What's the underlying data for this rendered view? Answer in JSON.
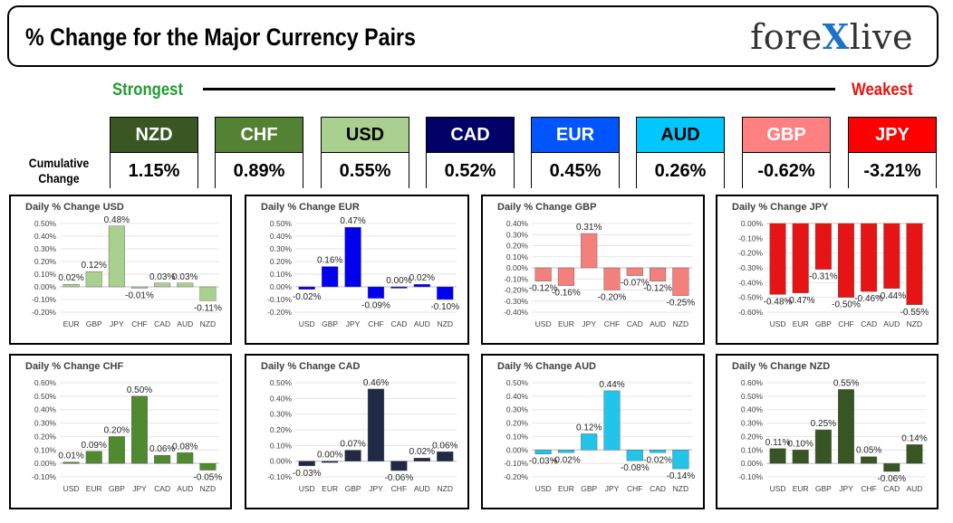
{
  "header": {
    "title": "% Change for the Major Currency Pairs",
    "logo_left": "fore",
    "logo_x": "X",
    "logo_right": "live"
  },
  "strength": {
    "strongest": "Strongest",
    "weakest": "Weakest",
    "cumulative_label_1": "Cumulative",
    "cumulative_label_2": "Change"
  },
  "currencies": [
    {
      "code": "NZD",
      "change": "1.15%",
      "bg": "#385723",
      "fg": "#ffffff"
    },
    {
      "code": "CHF",
      "change": "0.89%",
      "bg": "#548235",
      "fg": "#ffffff"
    },
    {
      "code": "USD",
      "change": "0.55%",
      "bg": "#a9d08e",
      "fg": "#000000"
    },
    {
      "code": "CAD",
      "change": "0.52%",
      "bg": "#000066",
      "fg": "#ffffff"
    },
    {
      "code": "EUR",
      "change": "0.45%",
      "bg": "#0055ff",
      "fg": "#ffffff"
    },
    {
      "code": "AUD",
      "change": "0.26%",
      "bg": "#00c8ff",
      "fg": "#000000"
    },
    {
      "code": "GBP",
      "change": "-0.62%",
      "bg": "#ff8080",
      "fg": "#ffffff"
    },
    {
      "code": "JPY",
      "change": "-3.21%",
      "bg": "#ff0000",
      "fg": "#ffffff"
    }
  ],
  "chart_data": [
    {
      "type": "bar",
      "title": "Daily % Change USD",
      "categories": [
        "EUR",
        "GBP",
        "JPY",
        "CHF",
        "CAD",
        "AUD",
        "NZD"
      ],
      "values": [
        0.02,
        0.12,
        0.48,
        -0.01,
        0.03,
        0.03,
        -0.11
      ],
      "value_labels": [
        "0.02%",
        "0.12%",
        "0.48%",
        "-0.01%",
        "0.03%",
        "0.03%",
        "-0.11%"
      ],
      "yticks": [
        "0.50%",
        "0.40%",
        "0.30%",
        "0.20%",
        "0.10%",
        "0.00%",
        "-0.10%",
        "-0.20%"
      ],
      "ylim": [
        -0.2,
        0.5
      ],
      "color": "#a9d08e"
    },
    {
      "type": "bar",
      "title": "Daily % Change EUR",
      "categories": [
        "USD",
        "GBP",
        "JPY",
        "CHF",
        "CAD",
        "AUD",
        "NZD"
      ],
      "values": [
        -0.02,
        0.16,
        0.47,
        -0.09,
        0.0,
        0.02,
        -0.1
      ],
      "value_labels": [
        "-0.02%",
        "0.16%",
        "0.47%",
        "-0.09%",
        "0.00%",
        "0.02%",
        "-0.10%"
      ],
      "yticks": [
        "0.50%",
        "0.40%",
        "0.30%",
        "0.20%",
        "0.10%",
        "0.00%",
        "-0.10%",
        "-0.20%"
      ],
      "ylim": [
        -0.2,
        0.5
      ],
      "color": "#0000ee"
    },
    {
      "type": "bar",
      "title": "Daily % Change GBP",
      "categories": [
        "USD",
        "EUR",
        "JPY",
        "CHF",
        "CAD",
        "AUD",
        "NZD"
      ],
      "values": [
        -0.12,
        -0.16,
        0.31,
        -0.2,
        -0.07,
        -0.12,
        -0.25
      ],
      "value_labels": [
        "-0.12%",
        "-0.16%",
        "0.31%",
        "-0.20%",
        "-0.07%",
        "-0.12%",
        "-0.25%"
      ],
      "yticks": [
        "0.40%",
        "0.30%",
        "0.20%",
        "0.10%",
        "0.00%",
        "-0.10%",
        "-0.20%",
        "-0.30%",
        "-0.40%"
      ],
      "ylim": [
        -0.4,
        0.4
      ],
      "color": "#f4807c"
    },
    {
      "type": "bar",
      "title": "Daily % Change JPY",
      "categories": [
        "USD",
        "EUR",
        "GBP",
        "CHF",
        "CAD",
        "AUD",
        "NZD"
      ],
      "values": [
        -0.48,
        -0.47,
        -0.31,
        -0.5,
        -0.46,
        -0.44,
        -0.55
      ],
      "value_labels": [
        "-0.48%",
        "-0.47%",
        "-0.31%",
        "-0.50%",
        "-0.46%",
        "-0.44%",
        "-0.55%"
      ],
      "yticks": [
        "0.00%",
        "-0.10%",
        "-0.20%",
        "-0.30%",
        "-0.40%",
        "-0.50%",
        "-0.60%"
      ],
      "ylim": [
        -0.6,
        0.0
      ],
      "color": "#e61414"
    },
    {
      "type": "bar",
      "title": "Daily % Change CHF",
      "categories": [
        "USD",
        "EUR",
        "GBP",
        "JPY",
        "CAD",
        "AUD",
        "NZD"
      ],
      "values": [
        0.01,
        0.09,
        0.2,
        0.5,
        0.06,
        0.08,
        -0.05
      ],
      "value_labels": [
        "0.01%",
        "0.09%",
        "0.20%",
        "0.50%",
        "0.06%",
        "0.08%",
        "-0.05%"
      ],
      "yticks": [
        "0.60%",
        "0.50%",
        "0.40%",
        "0.30%",
        "0.20%",
        "0.10%",
        "0.00%",
        "-0.10%"
      ],
      "ylim": [
        -0.1,
        0.6
      ],
      "color": "#4f8a2e"
    },
    {
      "type": "bar",
      "title": "Daily % Change CAD",
      "categories": [
        "USD",
        "EUR",
        "GBP",
        "JPY",
        "CHF",
        "AUD",
        "NZD"
      ],
      "values": [
        -0.03,
        0.0,
        0.07,
        0.46,
        -0.06,
        0.02,
        0.06
      ],
      "value_labels": [
        "-0.03%",
        "0.00%",
        "0.07%",
        "0.46%",
        "-0.06%",
        "0.02%",
        "0.06%"
      ],
      "yticks": [
        "0.50%",
        "0.40%",
        "0.30%",
        "0.20%",
        "0.10%",
        "0.00%",
        "-0.10%"
      ],
      "ylim": [
        -0.1,
        0.5
      ],
      "color": "#1f2a44"
    },
    {
      "type": "bar",
      "title": "Daily % Change AUD",
      "categories": [
        "USD",
        "EUR",
        "GBP",
        "JPY",
        "CHF",
        "CAD",
        "NZD"
      ],
      "values": [
        -0.03,
        -0.02,
        0.12,
        0.44,
        -0.08,
        -0.02,
        -0.14
      ],
      "value_labels": [
        "-0.03%",
        "-0.02%",
        "0.12%",
        "0.44%",
        "-0.08%",
        "-0.02%",
        "-0.14%"
      ],
      "yticks": [
        "0.50%",
        "0.40%",
        "0.30%",
        "0.20%",
        "0.10%",
        "0.00%",
        "-0.10%",
        "-0.20%"
      ],
      "ylim": [
        -0.2,
        0.5
      ],
      "color": "#22c4ea"
    },
    {
      "type": "bar",
      "title": "Daily % Change NZD",
      "categories": [
        "USD",
        "EUR",
        "GBP",
        "JPY",
        "CHF",
        "CAD",
        "AUD"
      ],
      "values": [
        0.11,
        0.1,
        0.25,
        0.55,
        0.05,
        -0.06,
        0.14
      ],
      "value_labels": [
        "0.11%",
        "0.10%",
        "0.25%",
        "0.55%",
        "0.05%",
        "-0.06%",
        "0.14%"
      ],
      "yticks": [
        "0.60%",
        "0.50%",
        "0.40%",
        "0.30%",
        "0.20%",
        "0.10%",
        "0.00%",
        "-0.10%"
      ],
      "ylim": [
        -0.1,
        0.6
      ],
      "color": "#375623"
    }
  ]
}
